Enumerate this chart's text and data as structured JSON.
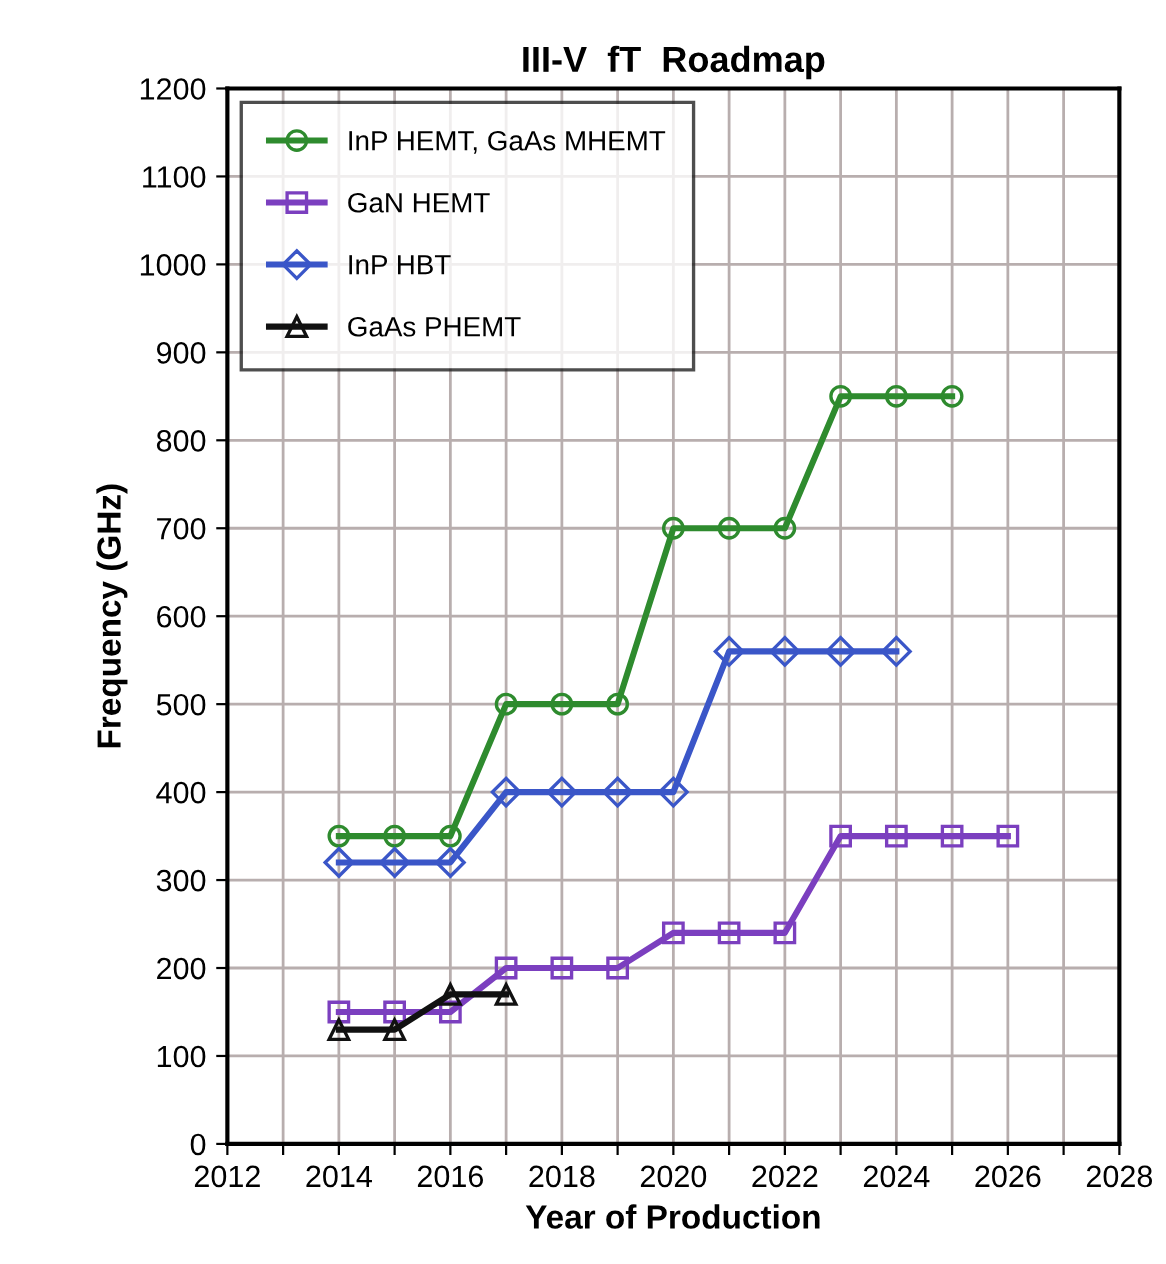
{
  "chart_data": {
    "type": "line",
    "title": "III-V  fT  Roadmap",
    "xlabel": "Year of Production",
    "ylabel": "Frequency (GHz)",
    "xlim": [
      2012,
      2028
    ],
    "ylim": [
      0,
      1200
    ],
    "xticks": [
      2012,
      {
        "value": 2013,
        "label": null
      },
      2014,
      {
        "value": 2015,
        "label": null
      },
      2016,
      {
        "value": 2017,
        "label": null
      },
      2018,
      {
        "value": 2019,
        "label": null
      },
      2020,
      {
        "value": 2021,
        "label": null
      },
      2022,
      {
        "value": 2023,
        "label": null
      },
      2024,
      {
        "value": 2025,
        "label": null
      },
      2026,
      {
        "value": 2027,
        "label": null
      },
      2028
    ],
    "yticks": [
      0,
      100,
      200,
      300,
      400,
      500,
      600,
      700,
      800,
      900,
      1000,
      1100,
      1200
    ],
    "grid": true,
    "legend": "top left",
    "series": [
      {
        "name": "InP HEMT, GaAs MHEMT",
        "color": "#2e8b2e",
        "marker": "circle",
        "x": [
          2014,
          2015,
          2016,
          2017,
          2018,
          2019,
          2020,
          2021,
          2022,
          2023,
          2024,
          2025
        ],
        "values": [
          350,
          350,
          350,
          500,
          500,
          500,
          700,
          700,
          700,
          850,
          850,
          850
        ]
      },
      {
        "name": "GaN HEMT",
        "color": "#7b3fbf",
        "marker": "square",
        "x": [
          2014,
          2015,
          2016,
          2017,
          2018,
          2019,
          2020,
          2021,
          2022,
          2023,
          2024,
          2025,
          2026
        ],
        "values": [
          150,
          150,
          150,
          200,
          200,
          200,
          240,
          240,
          240,
          350,
          350,
          350,
          350
        ]
      },
      {
        "name": "InP HBT",
        "color": "#3a56c8",
        "marker": "diamond",
        "x": [
          2014,
          2015,
          2016,
          2017,
          2018,
          2019,
          2020,
          2021,
          2022,
          2023,
          2024
        ],
        "values": [
          320,
          320,
          320,
          400,
          400,
          400,
          400,
          560,
          560,
          560,
          560
        ]
      },
      {
        "name": "GaAs PHEMT",
        "color": "#111111",
        "marker": "triangle",
        "x": [
          2014,
          2015,
          2016,
          2017
        ],
        "values": [
          130,
          130,
          170,
          170
        ]
      }
    ]
  }
}
